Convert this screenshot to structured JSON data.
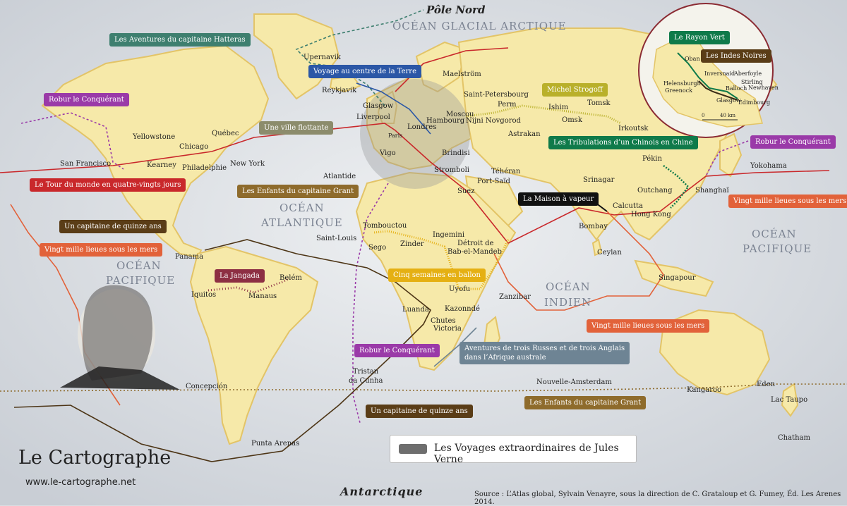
{
  "titles": {
    "pole_nord": "Pôle Nord",
    "antarctique": "Antarctique",
    "legend": "Les Voyages extraordinaires de Jules Verne",
    "source": "Source : L’Atlas global, Sylvain Venayre, sous la direction de C. Grataloup et G. Fumey, Éd. Les Arenes 2014.",
    "brand": "Le Cartographe",
    "url": "www.le-cartographe.net"
  },
  "oceans": {
    "arctique": "OCÉAN GLACIAL ARCTIQUE",
    "atlantique_1": "OCÉAN",
    "atlantique_2": "ATLANTIQUE",
    "pacifique_w1": "OCÉAN",
    "pacifique_w2": "PACIFIQUE",
    "indien_1": "OCÉAN",
    "indien_2": "INDIEN",
    "pacifique_e1": "OCÉAN",
    "pacifique_e2": "PACIFIQUE"
  },
  "places": {
    "upernavik": "Upernavik",
    "reykjavik": "Reykjavik",
    "maelstrom": "Maelström",
    "glasgow": "Glasgow",
    "liverpool": "Liverpool",
    "hambourg": "Hambourg",
    "londres": "Londres",
    "paris": "Paris",
    "vigo": "Vigo",
    "brindisi": "Brindisi",
    "stromboli": "Stromboli",
    "saint_petersbourg": "Saint-Petersbourg",
    "moscou": "Moscou",
    "nijni": "Nijni Novgorod",
    "perm": "Perm",
    "ishim": "Ishim",
    "omsk": "Omsk",
    "tomsk": "Tomsk",
    "irkoutsk": "Irkoutsk",
    "astrakan": "Astrakan",
    "teheran": "Téhéran",
    "srinagar": "Srinagar",
    "suez": "Suez",
    "port_said": "Port-Saïd",
    "yellowstone": "Yellowstone",
    "quebec": "Québec",
    "chicago": "Chicago",
    "kearney": "Kearney",
    "philadelphie": "Philadelphie",
    "new_york": "New York",
    "san_francisco": "San Francisco",
    "atlantide": "Atlantide",
    "tombouctou": "Tombouctou",
    "saint_louis": "Saint-Louis",
    "sego": "Sego",
    "zinder": "Zinder",
    "ingemini": "Ingemini",
    "detroit": "Détroit de",
    "bab": "Bab-el-Mandeb",
    "uyofu": "Uyofu",
    "zanzibar": "Zanzibar",
    "luanda": "Luanda",
    "kazonnde": "Kazonndé",
    "chutes": "Chutes",
    "victoria": "Victoria",
    "panama": "Panama",
    "iquitos": "Iquitos",
    "manaus": "Manaus",
    "belem": "Belém",
    "concepcion": "Concepción",
    "tristan_1": "Tristan",
    "tristan_2": "da Cunha",
    "punta_arenas": "Punta Arenas",
    "nouvelle_amsterdam": "Nouvelle-Amsterdam",
    "kangaroo": "Kangaroo",
    "eden": "Eden",
    "lac_taupo": "Lac Taupo",
    "chatham": "Chatham",
    "bombay": "Bombay",
    "calcutta": "Calcutta",
    "hong_kong": "Hong Kong",
    "ceylan": "Ceylan",
    "singapour": "Singapour",
    "pekin": "Pékin",
    "outchang": "Outchang",
    "shanghai": "Shanghaï",
    "yokohama": "Yokohama"
  },
  "inset": {
    "oban": "Oban",
    "inversnaid": "Inversnaid",
    "aberfoyle": "Aberfoyle",
    "stirling": "Stirling",
    "helensburgh": "Helensburgh",
    "greenock": "Greenock",
    "balloch": "Balloch",
    "newhaven": "Newhaven",
    "glasgow": "Glasgow",
    "edimbourg": "Edimbourg",
    "scale_0": "0",
    "scale_40": "40 km"
  },
  "tags": [
    {
      "text": "Les Aventures du capitaine Hatteras",
      "color": "#3e7f6f"
    },
    {
      "text": "Voyage au centre de la Terre",
      "color": "#2b57a6"
    },
    {
      "text": "Robur le Conquérant",
      "color": "#9a3aa8"
    },
    {
      "text": "Une ville flottante",
      "color": "#8c8c6c"
    },
    {
      "text": "Le Tour du monde en quatre-vingts jours",
      "color": "#c9282b"
    },
    {
      "text": "Les Enfants du capitaine Grant",
      "color": "#8e6b2c"
    },
    {
      "text": "Un capitaine de quinze ans",
      "color": "#5a3d17"
    },
    {
      "text": "Vingt mille lieues sous les mers",
      "color": "#e2623a"
    },
    {
      "text": "La Jangada",
      "color": "#8d2f43"
    },
    {
      "text": "Michel Strogoff",
      "color": "#b9b02a"
    },
    {
      "text": "Les Tribulations d’un Chinois en Chine",
      "color": "#0f7a4a"
    },
    {
      "text": "Robur le Conquérant",
      "color": "#9a3aa8"
    },
    {
      "text": "La Maison à vapeur",
      "color": "#111111"
    },
    {
      "text": "Vingt mille lieues sous les mers",
      "color": "#e2623a"
    },
    {
      "text": "Cinq semaines en ballon",
      "color": "#e5b013"
    },
    {
      "text": "Robur le Conquérant",
      "color": "#9a3aa8"
    },
    {
      "text": "Aventures de trois Russes et de trois Anglais\ndans l’Afrique australe",
      "color": "#6e8494"
    },
    {
      "text": "Vingt mille lieues sous les mers",
      "color": "#e2623a"
    },
    {
      "text": "Un capitaine de quinze ans",
      "color": "#5a3d17"
    },
    {
      "text": "Les Enfants du capitaine Grant",
      "color": "#8e6b2c"
    },
    {
      "text": "Le Rayon Vert",
      "color": "#0f7a4a"
    },
    {
      "text": "Les Indes Noires",
      "color": "#5a3d17"
    }
  ],
  "colors": {
    "land": "#f6e9a9",
    "land_edge": "#e0c36a",
    "sea": "#d9dde2"
  }
}
